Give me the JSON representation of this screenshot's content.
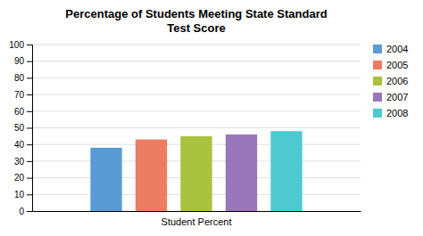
{
  "chart_data": {
    "type": "bar",
    "title": "Percentage of Students Meeting State Standard\nTest Score",
    "categories": [
      "Student Percent"
    ],
    "series": [
      {
        "name": "2004",
        "color": "#5B9BD5",
        "values": [
          38
        ]
      },
      {
        "name": "2005",
        "color": "#ED7D62",
        "values": [
          43
        ]
      },
      {
        "name": "2006",
        "color": "#A9C23F",
        "values": [
          45
        ]
      },
      {
        "name": "2007",
        "color": "#9975B9",
        "values": [
          46
        ]
      },
      {
        "name": "2008",
        "color": "#4EC9D0",
        "values": [
          48
        ]
      }
    ],
    "ylim": [
      0,
      100
    ],
    "yticks": [
      0,
      10,
      20,
      30,
      40,
      50,
      60,
      70,
      80,
      90,
      100
    ],
    "grid": true,
    "legend": "top-right"
  }
}
